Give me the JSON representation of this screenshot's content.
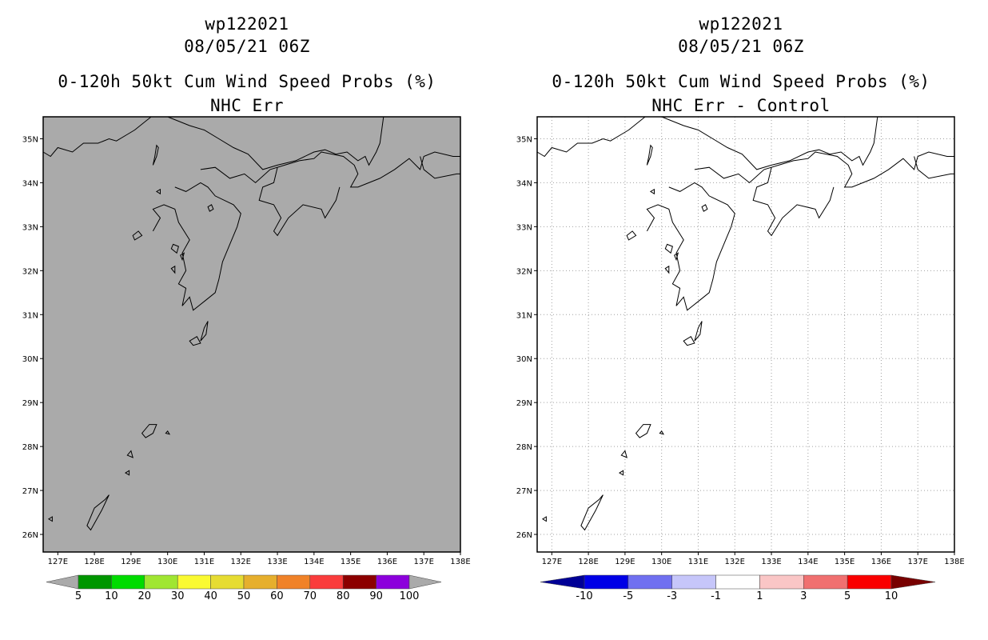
{
  "left": {
    "title1": "wp122021",
    "title2": "08/05/21 06Z",
    "title3": "0-120h 50kt Cum Wind Speed Probs (%)",
    "title4": "NHC Err",
    "background": "#aaaaaa",
    "colorbar": {
      "colors": [
        "#009600",
        "#00dc00",
        "#a0e632",
        "#fafa32",
        "#e6dc32",
        "#e6af2d",
        "#f08228",
        "#fa3c3c",
        "#8c0000",
        "#8c00dc"
      ],
      "end_color": "#aaaaaa",
      "labels": [
        "5",
        "10",
        "20",
        "30",
        "40",
        "50",
        "60",
        "70",
        "80",
        "90",
        "100"
      ]
    }
  },
  "right": {
    "title1": "wp122021",
    "title2": "08/05/21 06Z",
    "title3": "0-120h 50kt Cum Wind Speed Probs (%)",
    "title4": "NHC Err - Control",
    "background": "#ffffff",
    "colorbar": {
      "colors": [
        "#0000e6",
        "#7070f0",
        "#c6c6fa",
        "#ffffff",
        "#fac6c6",
        "#f07070",
        "#fa0000"
      ],
      "low_end_color": "#000096",
      "high_end_color": "#780000",
      "labels": [
        "-10",
        "-5",
        "-3",
        "-1",
        "1",
        "3",
        "5",
        "10"
      ]
    }
  },
  "axes": {
    "lat_labels": [
      "35N",
      "34N",
      "33N",
      "32N",
      "31N",
      "30N",
      "29N",
      "28N",
      "27N",
      "26N"
    ],
    "lon_labels": [
      "127E",
      "128E",
      "129E",
      "130E",
      "131E",
      "132E",
      "133E",
      "134E",
      "135E",
      "136E",
      "137E",
      "138E"
    ],
    "lat_range": [
      25.6,
      35.5
    ],
    "lon_range": [
      126.6,
      138.0
    ]
  }
}
